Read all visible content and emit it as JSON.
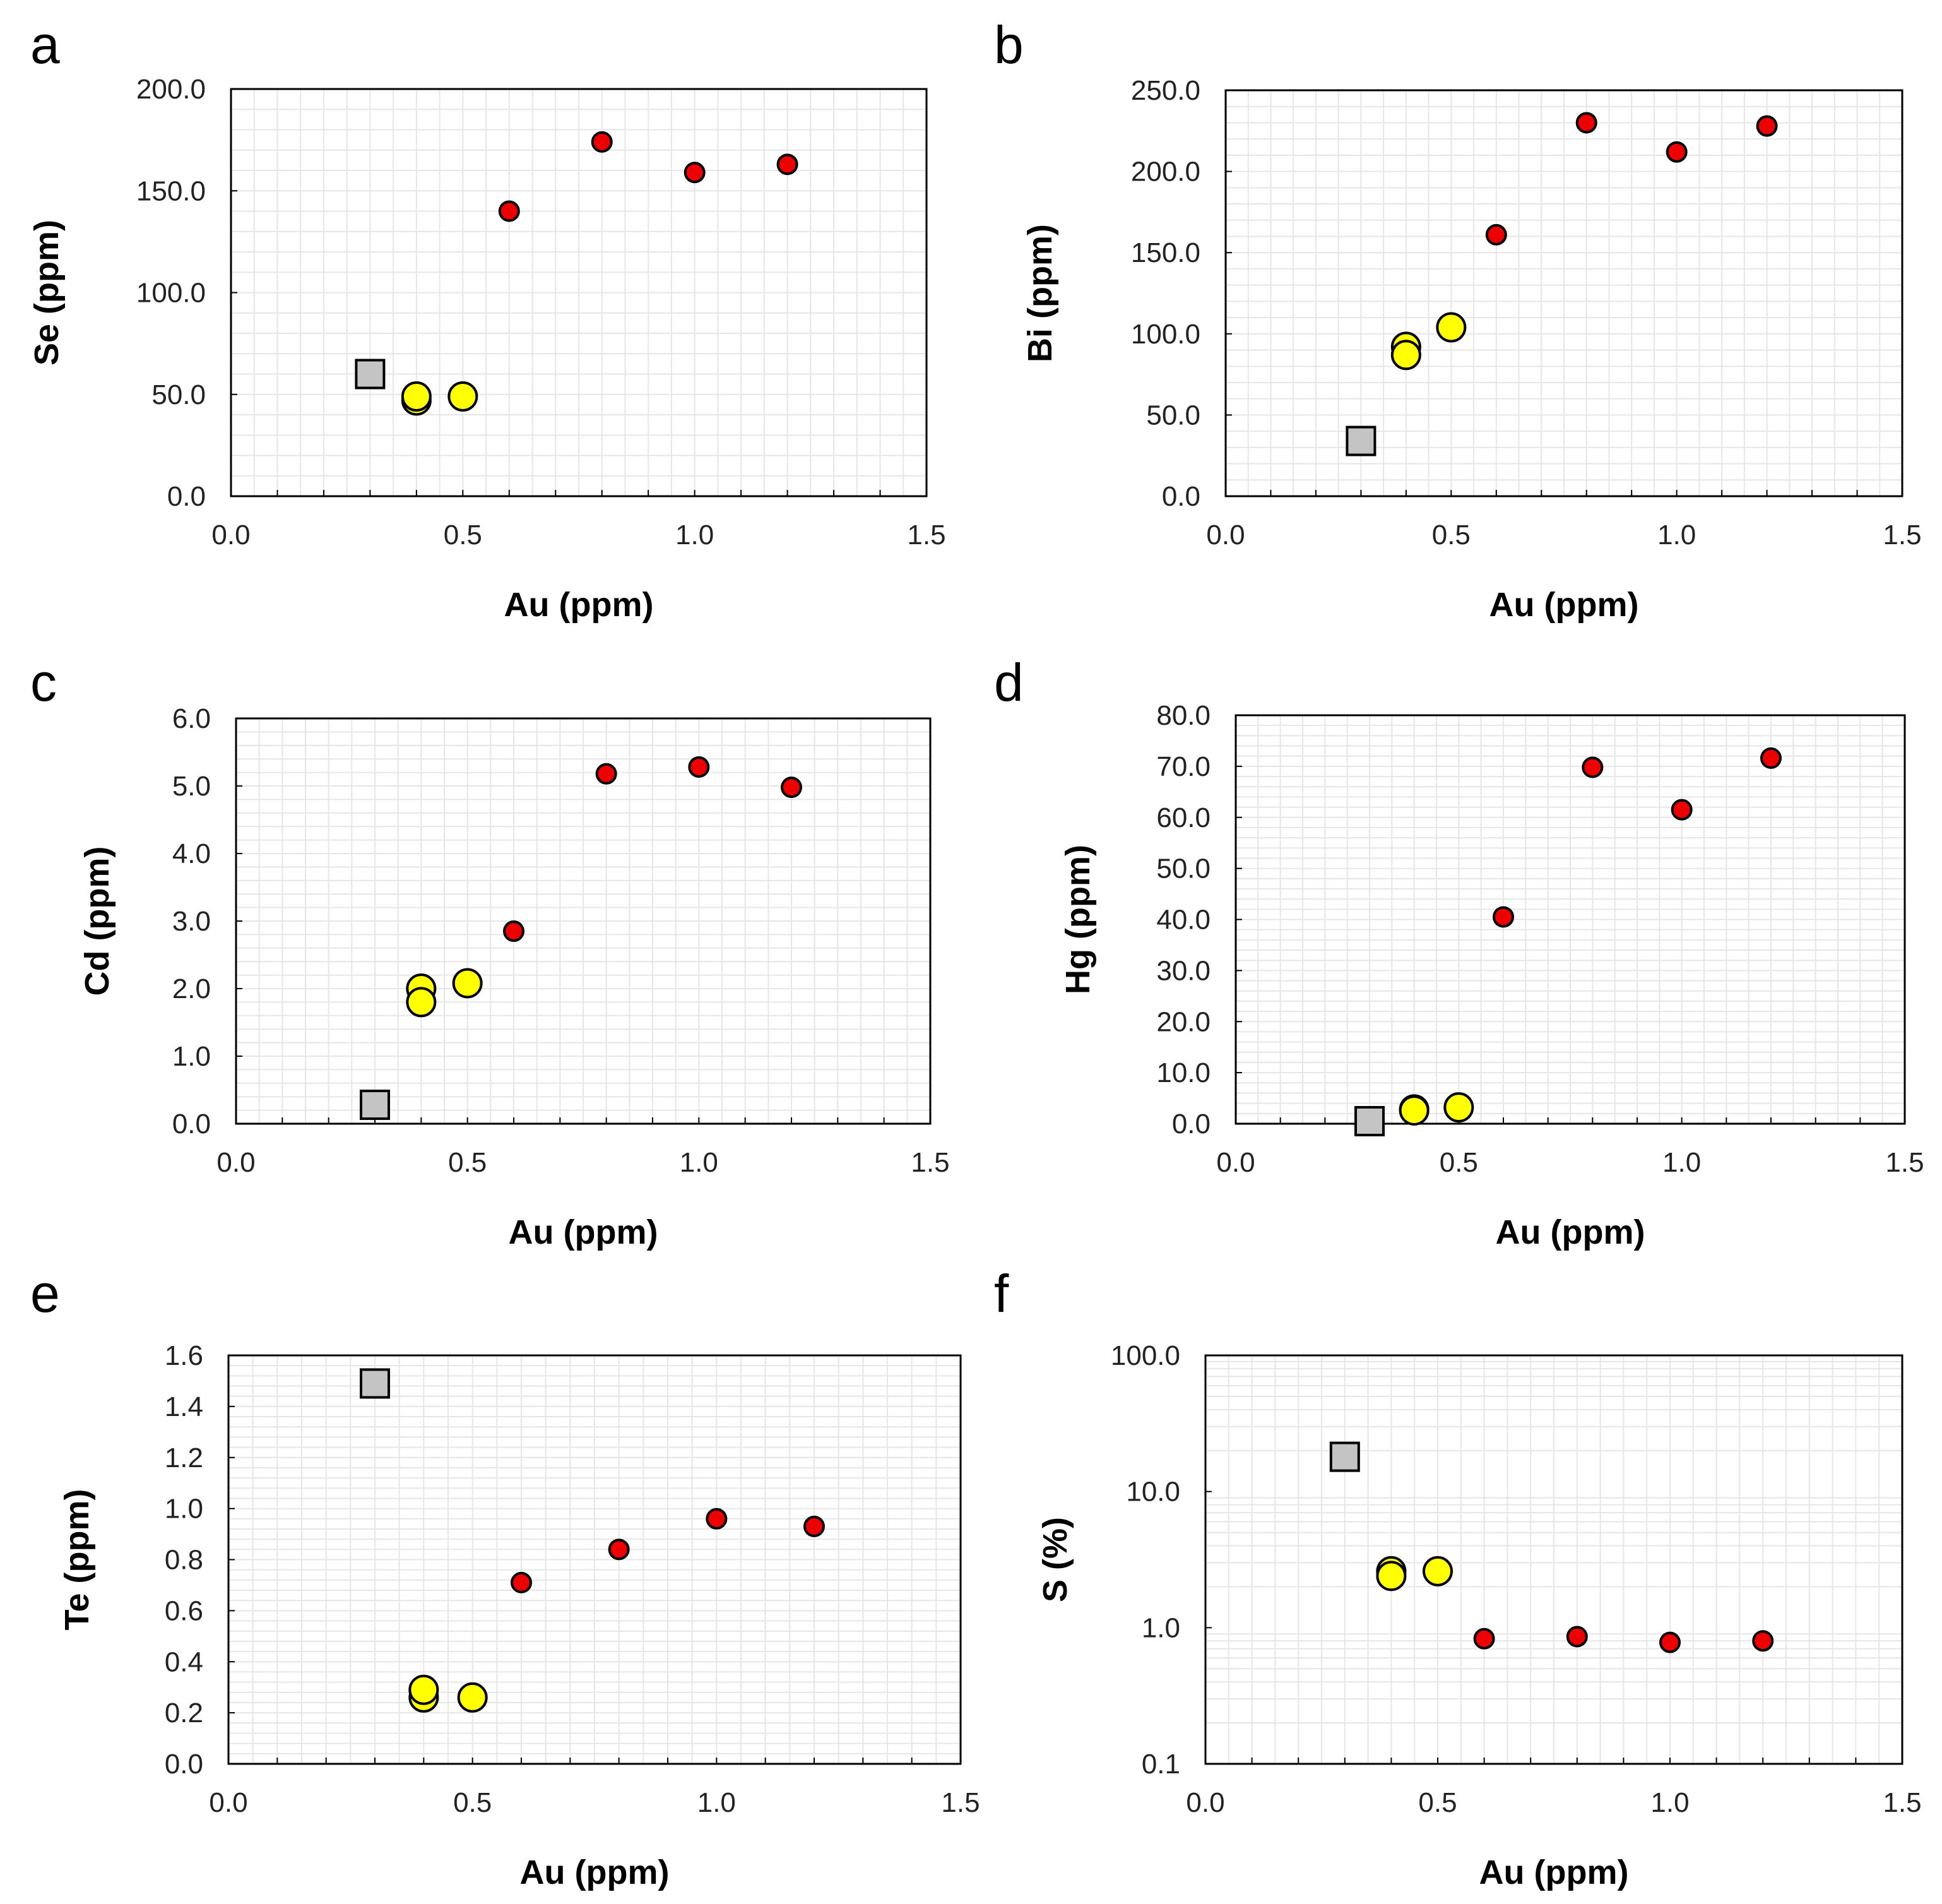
{
  "figure": {
    "legend_placement": "none",
    "marker_colors": {
      "gray_square": "#c4c4c4",
      "yellow_circle": "#ffff00",
      "red_circle": "#ee0000",
      "outline": "#000000",
      "plot_frame": "#000000",
      "minor_grid": "#e6e6e6"
    }
  },
  "chart_data": [
    {
      "panel": "a",
      "type": "scatter",
      "xlabel": "Au (ppm)",
      "ylabel": "Se (ppm)",
      "xlim": [
        0,
        1.5
      ],
      "ylim": [
        0,
        200
      ],
      "yscale": "linear",
      "grid": true,
      "xticks": [
        0,
        0.5,
        1.0,
        1.5
      ],
      "xtick_labels": [
        "0.0",
        "0.5",
        "1.0",
        "1.5"
      ],
      "yticks": [
        0,
        50,
        100,
        150,
        200
      ],
      "ytick_labels": [
        "0.0",
        "50.0",
        "100.0",
        "150.0",
        "200.0"
      ],
      "series": [
        {
          "name": "gray",
          "marker": "square",
          "color": "#c4c4c4",
          "x": [
            0.3
          ],
          "y": [
            60
          ]
        },
        {
          "name": "yellow",
          "marker": "circle",
          "color": "#ffff00",
          "x": [
            0.4,
            0.4,
            0.5
          ],
          "y": [
            47,
            49,
            49
          ]
        },
        {
          "name": "red",
          "marker": "circle",
          "color": "#ee0000",
          "x": [
            0.6,
            0.8,
            1.0,
            1.2
          ],
          "y": [
            140,
            174,
            159,
            163
          ]
        }
      ]
    },
    {
      "panel": "b",
      "type": "scatter",
      "xlabel": "Au (ppm)",
      "ylabel": "Bi (ppm)",
      "xlim": [
        0,
        1.5
      ],
      "ylim": [
        0,
        250
      ],
      "yscale": "linear",
      "grid": true,
      "xticks": [
        0,
        0.5,
        1.0,
        1.5
      ],
      "xtick_labels": [
        "0.0",
        "0.5",
        "1.0",
        "1.5"
      ],
      "yticks": [
        0,
        50,
        100,
        150,
        200,
        250
      ],
      "ytick_labels": [
        "0.0",
        "50.0",
        "100.0",
        "150.0",
        "200.0",
        "250.0"
      ],
      "series": [
        {
          "name": "gray",
          "marker": "square",
          "color": "#c4c4c4",
          "x": [
            0.3
          ],
          "y": [
            34
          ]
        },
        {
          "name": "yellow",
          "marker": "circle",
          "color": "#ffff00",
          "x": [
            0.4,
            0.4,
            0.5
          ],
          "y": [
            92,
            87,
            104
          ]
        },
        {
          "name": "red",
          "marker": "circle",
          "color": "#ee0000",
          "x": [
            0.6,
            0.8,
            1.0,
            1.2
          ],
          "y": [
            161,
            230,
            212,
            228
          ]
        }
      ]
    },
    {
      "panel": "c",
      "type": "scatter",
      "xlabel": "Au (ppm)",
      "ylabel": "Cd (ppm)",
      "xlim": [
        0,
        1.5
      ],
      "ylim": [
        0,
        6
      ],
      "yscale": "linear",
      "grid": true,
      "xticks": [
        0,
        0.5,
        1.0,
        1.5
      ],
      "xtick_labels": [
        "0.0",
        "0.5",
        "1.0",
        "1.5"
      ],
      "yticks": [
        0,
        1,
        2,
        3,
        4,
        5,
        6
      ],
      "ytick_labels": [
        "0.0",
        "1.0",
        "2.0",
        "3.0",
        "4.0",
        "5.0",
        "6.0"
      ],
      "series": [
        {
          "name": "gray",
          "marker": "square",
          "color": "#c4c4c4",
          "x": [
            0.3
          ],
          "y": [
            0.28
          ]
        },
        {
          "name": "yellow",
          "marker": "circle",
          "color": "#ffff00",
          "x": [
            0.4,
            0.4,
            0.5
          ],
          "y": [
            2.0,
            1.8,
            2.08
          ]
        },
        {
          "name": "red",
          "marker": "circle",
          "color": "#ee0000",
          "x": [
            0.6,
            0.8,
            1.0,
            1.2
          ],
          "y": [
            2.85,
            5.18,
            5.28,
            4.98
          ]
        }
      ]
    },
    {
      "panel": "d",
      "type": "scatter",
      "xlabel": "Au (ppm)",
      "ylabel": "Hg (ppm)",
      "xlim": [
        0,
        1.5
      ],
      "ylim": [
        0,
        80
      ],
      "yscale": "linear",
      "grid": true,
      "xticks": [
        0,
        0.5,
        1.0,
        1.5
      ],
      "xtick_labels": [
        "0.0",
        "0.5",
        "1.0",
        "1.5"
      ],
      "yticks": [
        0,
        10,
        20,
        30,
        40,
        50,
        60,
        70,
        80
      ],
      "ytick_labels": [
        "0.0",
        "10.0",
        "20.0",
        "30.0",
        "40.0",
        "50.0",
        "60.0",
        "70.0",
        "80.0"
      ],
      "series": [
        {
          "name": "gray",
          "marker": "square",
          "color": "#c4c4c4",
          "x": [
            0.3
          ],
          "y": [
            0.5
          ]
        },
        {
          "name": "yellow",
          "marker": "circle",
          "color": "#ffff00",
          "x": [
            0.4,
            0.4,
            0.5
          ],
          "y": [
            2.8,
            2.6,
            3.2
          ]
        },
        {
          "name": "red",
          "marker": "circle",
          "color": "#ee0000",
          "x": [
            0.6,
            0.8,
            1.0,
            1.2
          ],
          "y": [
            40.5,
            69.8,
            61.5,
            71.6
          ]
        }
      ]
    },
    {
      "panel": "e",
      "type": "scatter",
      "xlabel": "Au (ppm)",
      "ylabel": "Te (ppm)",
      "xlim": [
        0,
        1.5
      ],
      "ylim": [
        0,
        1.6
      ],
      "yscale": "linear",
      "grid": true,
      "xticks": [
        0,
        0.5,
        1.0,
        1.5
      ],
      "xtick_labels": [
        "0.0",
        "0.5",
        "1.0",
        "1.5"
      ],
      "yticks": [
        0,
        0.2,
        0.4,
        0.6,
        0.8,
        1.0,
        1.2,
        1.4,
        1.6
      ],
      "ytick_labels": [
        "0.0",
        "0.2",
        "0.4",
        "0.6",
        "0.8",
        "1.0",
        "1.2",
        "1.4",
        "1.6"
      ],
      "series": [
        {
          "name": "gray",
          "marker": "square",
          "color": "#c4c4c4",
          "x": [
            0.3
          ],
          "y": [
            1.49
          ]
        },
        {
          "name": "yellow",
          "marker": "circle",
          "color": "#ffff00",
          "x": [
            0.4,
            0.4,
            0.5
          ],
          "y": [
            0.26,
            0.29,
            0.26
          ]
        },
        {
          "name": "red",
          "marker": "circle",
          "color": "#ee0000",
          "x": [
            0.6,
            0.8,
            1.0,
            1.2
          ],
          "y": [
            0.71,
            0.84,
            0.96,
            0.93
          ]
        }
      ]
    },
    {
      "panel": "f",
      "type": "scatter",
      "xlabel": "Au (ppm)",
      "ylabel": "S (%)",
      "xlim": [
        0,
        1.5
      ],
      "ylim": [
        0.1,
        100
      ],
      "yscale": "log",
      "grid": true,
      "xticks": [
        0,
        0.5,
        1.0,
        1.5
      ],
      "xtick_labels": [
        "0.0",
        "0.5",
        "1.0",
        "1.5"
      ],
      "yticks": [
        0.1,
        1,
        10,
        100
      ],
      "ytick_labels": [
        "0.1",
        "1.0",
        "10.0",
        "100.0"
      ],
      "series": [
        {
          "name": "gray",
          "marker": "square",
          "color": "#c4c4c4",
          "x": [
            0.3
          ],
          "y": [
            18
          ]
        },
        {
          "name": "yellow",
          "marker": "circle",
          "color": "#ffff00",
          "x": [
            0.4,
            0.4,
            0.5
          ],
          "y": [
            2.6,
            2.4,
            2.6
          ]
        },
        {
          "name": "red",
          "marker": "circle",
          "color": "#ee0000",
          "x": [
            0.6,
            0.8,
            1.0,
            1.2
          ],
          "y": [
            0.83,
            0.86,
            0.78,
            0.8
          ]
        }
      ]
    }
  ]
}
